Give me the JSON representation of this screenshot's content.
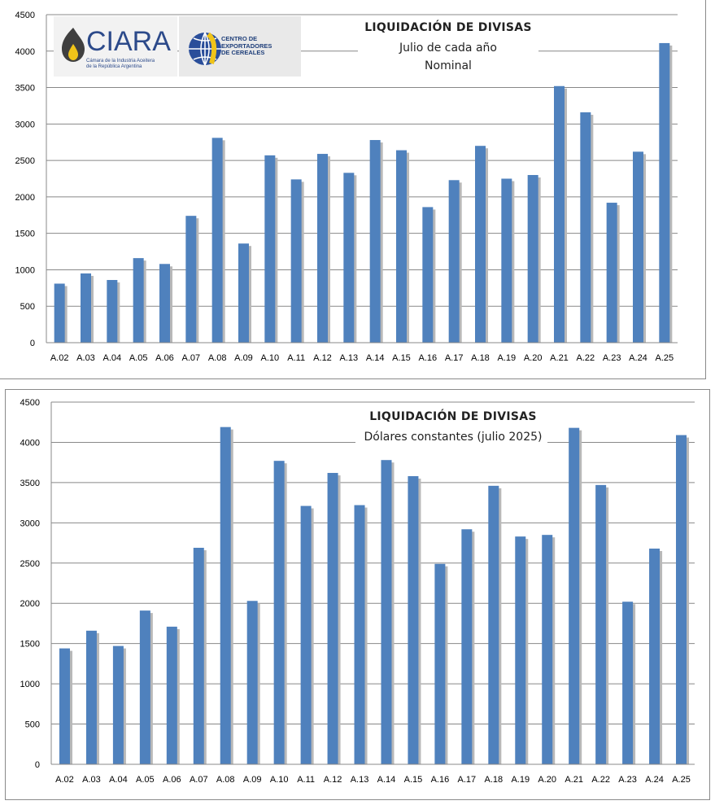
{
  "chart_data": [
    {
      "type": "bar",
      "title": "LIQUIDACIÓN DE DIVISAS",
      "subtitle": "Julio de cada año",
      "subtitle2": "Nominal",
      "categories": [
        "A.02",
        "A.03",
        "A.04",
        "A.05",
        "A.06",
        "A.07",
        "A.08",
        "A.09",
        "A.10",
        "A.11",
        "A.12",
        "A.13",
        "A.14",
        "A.15",
        "A.16",
        "A.17",
        "A.18",
        "A.19",
        "A.20",
        "A.21",
        "A.22",
        "A.23",
        "A.24",
        "A.25"
      ],
      "values": [
        810,
        950,
        860,
        1160,
        1080,
        1740,
        2810,
        1360,
        2570,
        2240,
        2590,
        2330,
        2780,
        2640,
        1860,
        2230,
        2700,
        2250,
        2300,
        3520,
        3160,
        1920,
        2620,
        4110
      ],
      "ylim": [
        0,
        4500
      ],
      "yticks": [
        0,
        500,
        1000,
        1500,
        2000,
        2500,
        3000,
        3500,
        4000,
        4500
      ],
      "grid": true,
      "bar_color": "#4f81bd",
      "logos": {
        "ciara": {
          "name": "CIARA",
          "subtitle": "Cámara de la Industria Aceitera\nde la República Argentina"
        },
        "cec": {
          "text": "CENTRO DE\nEXPORTADORES\nDE CEREALES"
        }
      }
    },
    {
      "type": "bar",
      "title": "LIQUIDACIÓN DE DIVISAS",
      "subtitle": "Dólares constantes (julio 2025)",
      "categories": [
        "A.02",
        "A.03",
        "A.04",
        "A.05",
        "A.06",
        "A.07",
        "A.08",
        "A.09",
        "A.10",
        "A.11",
        "A.12",
        "A.13",
        "A.14",
        "A.15",
        "A.16",
        "A.17",
        "A.18",
        "A.19",
        "A.20",
        "A.21",
        "A.22",
        "A.23",
        "A.24",
        "A.25"
      ],
      "values": [
        1440,
        1660,
        1470,
        1910,
        1710,
        2690,
        4190,
        2030,
        3770,
        3210,
        3620,
        3220,
        3780,
        3580,
        2490,
        2920,
        3460,
        2830,
        2850,
        4180,
        3470,
        2020,
        2680,
        4090
      ],
      "ylim": [
        0,
        4500
      ],
      "yticks": [
        0,
        500,
        1000,
        1500,
        2000,
        2500,
        3000,
        3500,
        4000,
        4500
      ],
      "grid": true,
      "bar_color": "#4f81bd"
    }
  ]
}
